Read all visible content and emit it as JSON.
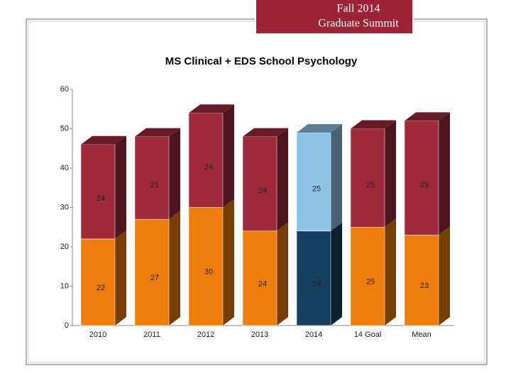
{
  "header": {
    "lines": [
      "Fall 2014",
      "Graduate Summit"
    ]
  },
  "chart_data": {
    "type": "stacked_bar_3d",
    "title": "MS Clinical + EDS School Psychology",
    "categories": [
      "2010",
      "2011",
      "2012",
      "2013",
      "2014",
      "14 Goal",
      "Mean"
    ],
    "series": [
      {
        "colors": [
          "#ee7d0e",
          "#ee7d0e",
          "#ee7d0e",
          "#ee7d0e",
          "#173f5f",
          "#ee7d0e",
          "#ee7d0e"
        ],
        "values": [
          22,
          27,
          30,
          24,
          24,
          25,
          23
        ]
      },
      {
        "colors": [
          "#9e2a3b",
          "#9e2a3b",
          "#9e2a3b",
          "#9e2a3b",
          "#8ec3e6",
          "#9e2a3b",
          "#9e2a3b"
        ],
        "values": [
          24,
          21,
          24,
          24,
          25,
          25,
          29
        ]
      }
    ],
    "ylim": [
      0,
      60
    ],
    "yticks": [
      0,
      10,
      20,
      30,
      40,
      50,
      60
    ],
    "grid": false
  }
}
